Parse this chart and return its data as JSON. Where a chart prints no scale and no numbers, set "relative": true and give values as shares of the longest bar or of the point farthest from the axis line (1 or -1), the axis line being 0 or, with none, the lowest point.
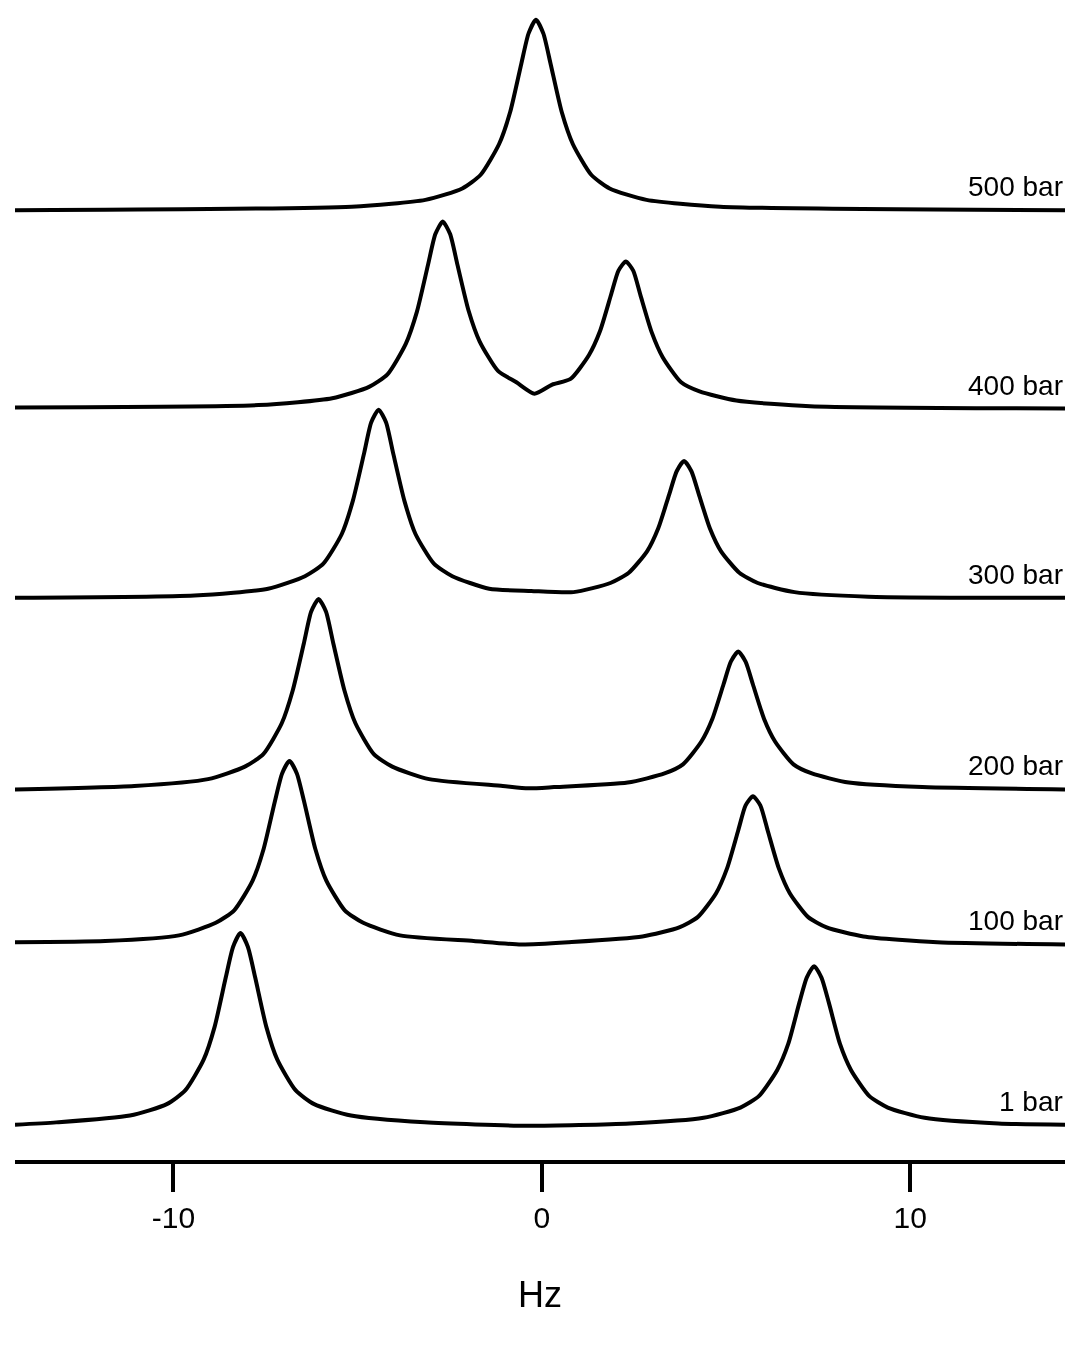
{
  "chart_data": {
    "type": "line",
    "relative": true,
    "xlabel": "Hz",
    "xlim": [
      -14.3,
      14.2
    ],
    "xticks": [
      -10,
      0,
      10
    ],
    "legend": false,
    "marker": "none",
    "line_style": "solid",
    "series": [
      {
        "name": "500 bar",
        "color": "#000000",
        "x": [
          -14.3,
          -5.16,
          -3.16,
          -2.16,
          -1.66,
          -1.16,
          -0.86,
          -0.56,
          -0.36,
          -0.16,
          0.04,
          0.24,
          0.54,
          0.84,
          1.34,
          1.84,
          2.84,
          4.84,
          14.2
        ],
        "values": [
          0.833,
          0.836,
          0.842,
          0.852,
          0.864,
          0.891,
          0.919,
          0.961,
          0.988,
          1.0,
          0.988,
          0.961,
          0.919,
          0.891,
          0.864,
          0.852,
          0.842,
          0.836,
          0.833
        ]
      },
      {
        "name": "400 bar",
        "color": "#000000",
        "x": [
          -14.3,
          -7.69,
          -5.69,
          -4.69,
          -4.19,
          -3.69,
          -3.39,
          -3.09,
          -2.89,
          -2.69,
          -2.49,
          -2.29,
          -1.99,
          -1.69,
          -1.19,
          -0.69,
          -0.2,
          0.28,
          0.78,
          1.28,
          1.58,
          1.88,
          2.08,
          2.28,
          2.48,
          2.68,
          2.98,
          3.28,
          3.78,
          4.28,
          5.28,
          7.28,
          14.2
        ],
        "values": [
          0.66,
          0.662,
          0.668,
          0.678,
          0.689,
          0.716,
          0.744,
          0.785,
          0.812,
          0.823,
          0.812,
          0.785,
          0.745,
          0.718,
          0.692,
          0.682,
          0.672,
          0.68,
          0.685,
          0.706,
          0.727,
          0.759,
          0.78,
          0.788,
          0.78,
          0.758,
          0.726,
          0.704,
          0.682,
          0.674,
          0.666,
          0.661,
          0.659
        ]
      },
      {
        "name": "300 bar",
        "color": "#000000",
        "x": [
          -14.3,
          -9.43,
          -7.43,
          -6.43,
          -5.93,
          -5.43,
          -5.13,
          -4.83,
          -4.63,
          -4.43,
          -4.23,
          -4.03,
          -3.73,
          -3.43,
          -2.93,
          -2.43,
          -1.43,
          -0.29,
          0.86,
          1.86,
          2.36,
          2.86,
          3.16,
          3.46,
          3.66,
          3.86,
          4.06,
          4.26,
          4.56,
          4.86,
          5.36,
          5.86,
          6.86,
          8.86,
          14.2
        ],
        "values": [
          0.493,
          0.495,
          0.501,
          0.512,
          0.523,
          0.549,
          0.578,
          0.619,
          0.647,
          0.658,
          0.647,
          0.619,
          0.578,
          0.549,
          0.523,
          0.512,
          0.501,
          0.499,
          0.498,
          0.506,
          0.515,
          0.534,
          0.554,
          0.584,
          0.604,
          0.613,
          0.604,
          0.584,
          0.554,
          0.534,
          0.515,
          0.506,
          0.498,
          0.494,
          0.493
        ]
      },
      {
        "name": "200 bar",
        "color": "#000000",
        "x": [
          -14.3,
          -11.06,
          -9.06,
          -8.06,
          -7.56,
          -7.06,
          -6.76,
          -6.46,
          -6.26,
          -6.06,
          -5.86,
          -5.66,
          -5.36,
          -5.06,
          -4.56,
          -4.06,
          -3.06,
          -1.06,
          -0.37,
          0.33,
          2.33,
          3.33,
          3.83,
          4.33,
          4.63,
          4.93,
          5.13,
          5.33,
          5.53,
          5.73,
          6.03,
          6.33,
          6.83,
          7.33,
          8.33,
          10.33,
          14.2
        ],
        "values": [
          0.325,
          0.328,
          0.334,
          0.345,
          0.356,
          0.383,
          0.412,
          0.453,
          0.481,
          0.492,
          0.481,
          0.453,
          0.412,
          0.383,
          0.356,
          0.345,
          0.334,
          0.328,
          0.326,
          0.327,
          0.331,
          0.339,
          0.347,
          0.367,
          0.387,
          0.417,
          0.437,
          0.446,
          0.437,
          0.417,
          0.387,
          0.367,
          0.347,
          0.339,
          0.331,
          0.327,
          0.325
        ]
      },
      {
        "name": "100 bar",
        "color": "#000000",
        "x": [
          -14.3,
          -11.85,
          -9.85,
          -8.85,
          -8.35,
          -7.85,
          -7.55,
          -7.25,
          -7.05,
          -6.85,
          -6.65,
          -6.45,
          -6.15,
          -5.85,
          -5.35,
          -4.85,
          -3.85,
          -1.85,
          -0.56,
          0.73,
          2.73,
          3.73,
          4.23,
          4.73,
          5.03,
          5.33,
          5.53,
          5.73,
          5.93,
          6.13,
          6.43,
          6.73,
          7.23,
          7.73,
          8.73,
          10.73,
          14.2
        ],
        "values": [
          0.191,
          0.192,
          0.197,
          0.208,
          0.219,
          0.245,
          0.273,
          0.314,
          0.339,
          0.35,
          0.339,
          0.314,
          0.273,
          0.245,
          0.219,
          0.208,
          0.197,
          0.192,
          0.189,
          0.191,
          0.196,
          0.204,
          0.213,
          0.234,
          0.256,
          0.289,
          0.311,
          0.319,
          0.311,
          0.289,
          0.256,
          0.234,
          0.213,
          0.204,
          0.196,
          0.191,
          0.189
        ]
      },
      {
        "name": "1 bar",
        "color": "#000000",
        "x": [
          -14.3,
          -13.18,
          -11.18,
          -10.18,
          -9.68,
          -9.18,
          -8.88,
          -8.58,
          -8.38,
          -8.18,
          -7.98,
          -7.78,
          -7.48,
          -7.18,
          -6.68,
          -6.18,
          -5.18,
          -3.18,
          -0.4,
          2.39,
          4.39,
          5.39,
          5.89,
          6.39,
          6.69,
          6.99,
          7.19,
          7.39,
          7.59,
          7.79,
          8.09,
          8.39,
          8.89,
          9.39,
          10.39,
          12.39,
          14.2
        ],
        "values": [
          0.031,
          0.033,
          0.039,
          0.049,
          0.061,
          0.088,
          0.117,
          0.16,
          0.187,
          0.199,
          0.187,
          0.16,
          0.117,
          0.088,
          0.061,
          0.049,
          0.039,
          0.033,
          0.03,
          0.032,
          0.037,
          0.046,
          0.056,
          0.079,
          0.102,
          0.138,
          0.16,
          0.17,
          0.16,
          0.138,
          0.102,
          0.079,
          0.056,
          0.046,
          0.037,
          0.032,
          0.031
        ]
      }
    ]
  }
}
